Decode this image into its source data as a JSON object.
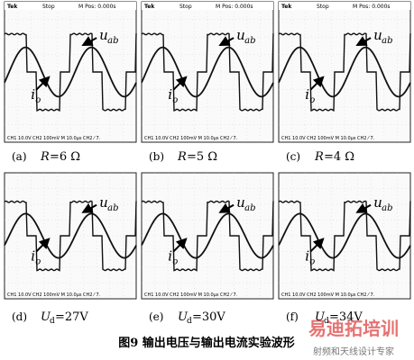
{
  "panels": [
    {
      "header": {
        "brand": "Tek",
        "status": "Stop",
        "position": "M Pos: 0.000s"
      },
      "footer": "CH1 10.0V CH2 100mV M 10.0μs CH2 ⁄ 7.",
      "voltage_label": "u",
      "voltage_sub": "ab",
      "current_label": "i",
      "current_sub": "o",
      "caption": {
        "letter": "(a)",
        "variable": "R",
        "value": "=6 Ω"
      }
    },
    {
      "header": {
        "brand": "Tek",
        "status": "Stop",
        "position": "M Pos: 0.000s"
      },
      "footer": "CH1 10.0V CH2 100mV M 10.0μs CH2 ⁄ 7.",
      "voltage_label": "u",
      "voltage_sub": "ab",
      "current_label": "i",
      "current_sub": "o",
      "caption": {
        "letter": "(b)",
        "variable": "R",
        "value": "=5 Ω"
      }
    },
    {
      "header": {
        "brand": "Tek",
        "status": "Stop",
        "position": "M Pos: 0.000s"
      },
      "footer": "CH1 10.0V CH2 100mV M 10.0μs CH2 ⁄ 7.",
      "voltage_label": "u",
      "voltage_sub": "ab",
      "current_label": "i",
      "current_sub": "o",
      "caption": {
        "letter": "(c)",
        "variable": "R",
        "value": "=4 Ω"
      }
    },
    {
      "footer": "CH1 10.0V CH2 100mV M 10.0μs CH2 ⁄ 7.",
      "voltage_label": "u",
      "voltage_sub": "ab",
      "current_label": "i",
      "current_sub": "o",
      "caption": {
        "letter": "(d)",
        "variable": "U",
        "variable_sub": "d",
        "value": "=27V"
      }
    },
    {
      "footer": "CH1 10.0V CH2 100mV M 10.0μs CH2 ⁄ 7.",
      "voltage_label": "u",
      "voltage_sub": "ab",
      "current_label": "i",
      "current_sub": "o",
      "caption": {
        "letter": "(e)",
        "variable": "U",
        "variable_sub": "d",
        "value": "=30V"
      }
    },
    {
      "footer": "CH1 10.0V CH2 100mV M 10.0μs CH2 ⁄ 7.",
      "voltage_label": "u",
      "voltage_sub": "ab",
      "current_label": "i",
      "current_sub": "o",
      "caption": {
        "letter": "(f)",
        "variable": "U",
        "variable_sub": "d",
        "value": "=34V"
      }
    }
  ],
  "figure_caption": "图9  输出电压与输出电流实验波形",
  "watermark": {
    "logo": "易迪拓培训",
    "tagline": "射频和天线设计专家"
  }
}
